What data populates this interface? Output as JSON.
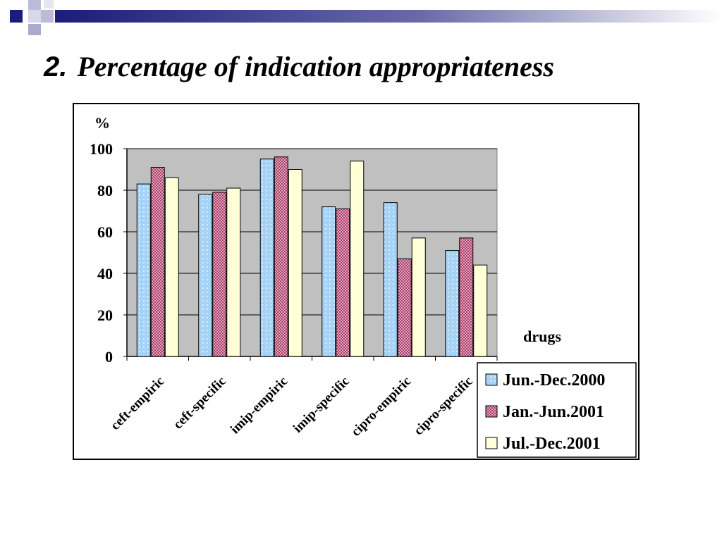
{
  "slide": {
    "number": "2.",
    "title": "Percentage of indication appropriateness"
  },
  "chart_data": {
    "type": "bar",
    "title": "",
    "ylabel": "%",
    "xlabel": "drugs",
    "ylim": [
      0,
      100
    ],
    "yticks": [
      0,
      20,
      40,
      60,
      80,
      100
    ],
    "grid": true,
    "legend_position": "bottom-right",
    "categories": [
      "ceft-empiric",
      "ceft-specific",
      "imip-empiric",
      "imip-specific",
      "cipro-empiric",
      "cipro-specific"
    ],
    "series": [
      {
        "name": "Jun.-Dec.2000",
        "values": [
          83,
          78,
          95,
          72,
          74,
          51
        ],
        "color": "#a6d2f6",
        "pattern": "dots"
      },
      {
        "name": "Jan.-Jun.2001",
        "values": [
          91,
          79,
          96,
          71,
          47,
          57
        ],
        "color": "#a8436a",
        "pattern": "checker"
      },
      {
        "name": "Jul.-Dec.2001",
        "values": [
          86,
          81,
          90,
          94,
          57,
          44
        ],
        "color": "#ffffd8",
        "pattern": "plain"
      }
    ],
    "colors": {
      "plot_background": "#c0c0c0",
      "frame": "#000000",
      "header_navy": "#1c1c7a"
    }
  }
}
